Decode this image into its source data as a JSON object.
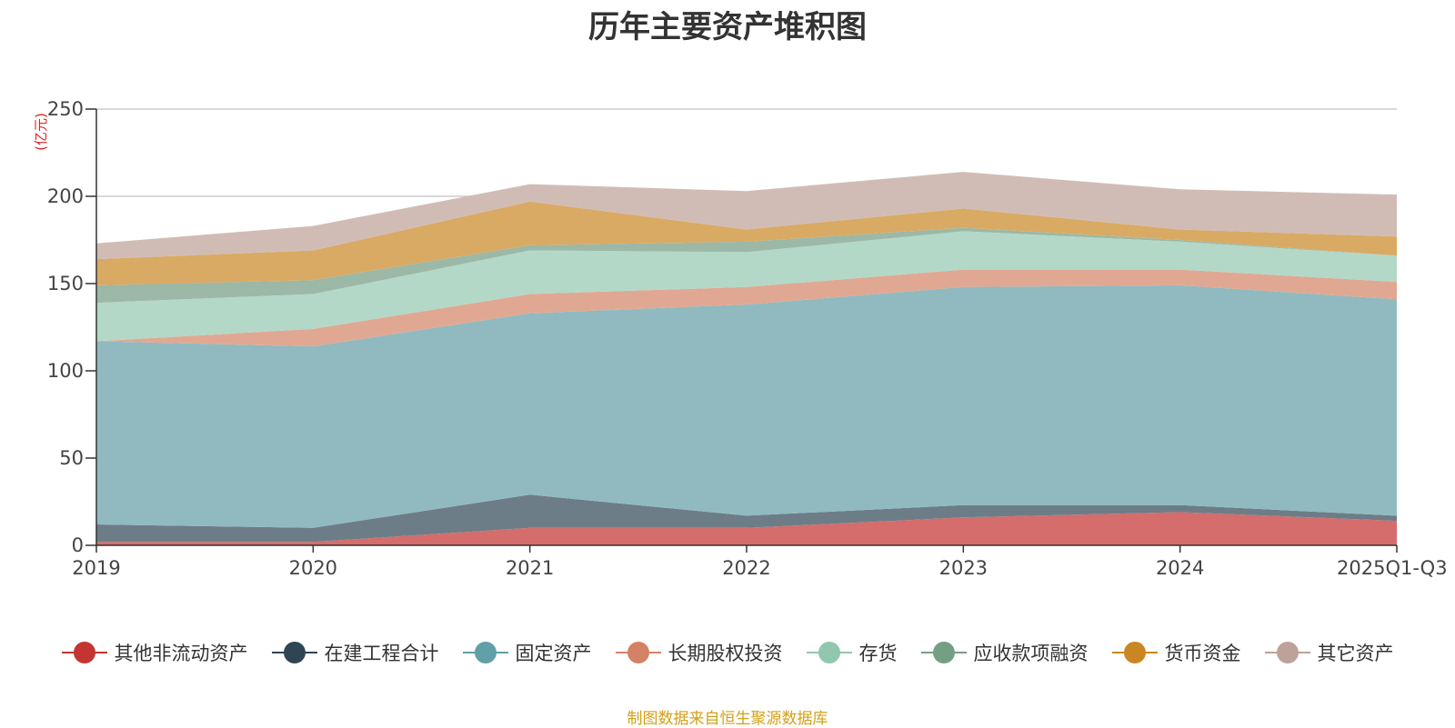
{
  "chart_data": {
    "type": "area",
    "stacked": true,
    "title": "历年主要资产堆积图",
    "ylabel": "(亿元)",
    "xlabel": "",
    "categories": [
      "2019",
      "2020",
      "2021",
      "2022",
      "2023",
      "2024",
      "2025Q1-Q3"
    ],
    "ylim": [
      0,
      250
    ],
    "yticks": [
      0,
      50,
      100,
      150,
      200,
      250
    ],
    "grid": true,
    "legend_position": "bottom",
    "series": [
      {
        "name": "其他非流动资产",
        "color": "#c23531",
        "fill": "#d46d6b",
        "values": [
          2,
          2,
          10,
          10,
          16,
          19,
          14
        ]
      },
      {
        "name": "在建工程合计",
        "color": "#2f4554",
        "fill": "#6d7d88",
        "values": [
          10,
          8,
          19,
          7,
          7,
          4,
          3
        ]
      },
      {
        "name": "固定资产",
        "color": "#61a0a8",
        "fill": "#90bac0",
        "values": [
          105,
          104,
          104,
          121,
          125,
          126,
          124
        ]
      },
      {
        "name": "长期股权投资",
        "color": "#d48265",
        "fill": "#e0a892",
        "values": [
          0,
          10,
          11,
          10,
          10,
          9,
          10
        ]
      },
      {
        "name": "存货",
        "color": "#91c7ae",
        "fill": "#b3d8c7",
        "values": [
          22,
          20,
          25,
          20,
          22,
          16,
          15
        ]
      },
      {
        "name": "应收款项融资",
        "color": "#749f83",
        "fill": "#9cb8a6",
        "values": [
          10,
          8,
          3,
          6,
          2,
          1,
          0
        ]
      },
      {
        "name": "货币资金",
        "color": "#ca8622",
        "fill": "#d9aa64",
        "values": [
          15,
          17,
          25,
          7,
          11,
          6,
          11
        ]
      },
      {
        "name": "其它资产",
        "color": "#bda29a",
        "fill": "#d1bcb5",
        "values": [
          9,
          14,
          10,
          22,
          21,
          23,
          24
        ]
      }
    ]
  },
  "source_note": "制图数据来自恒生聚源数据库"
}
